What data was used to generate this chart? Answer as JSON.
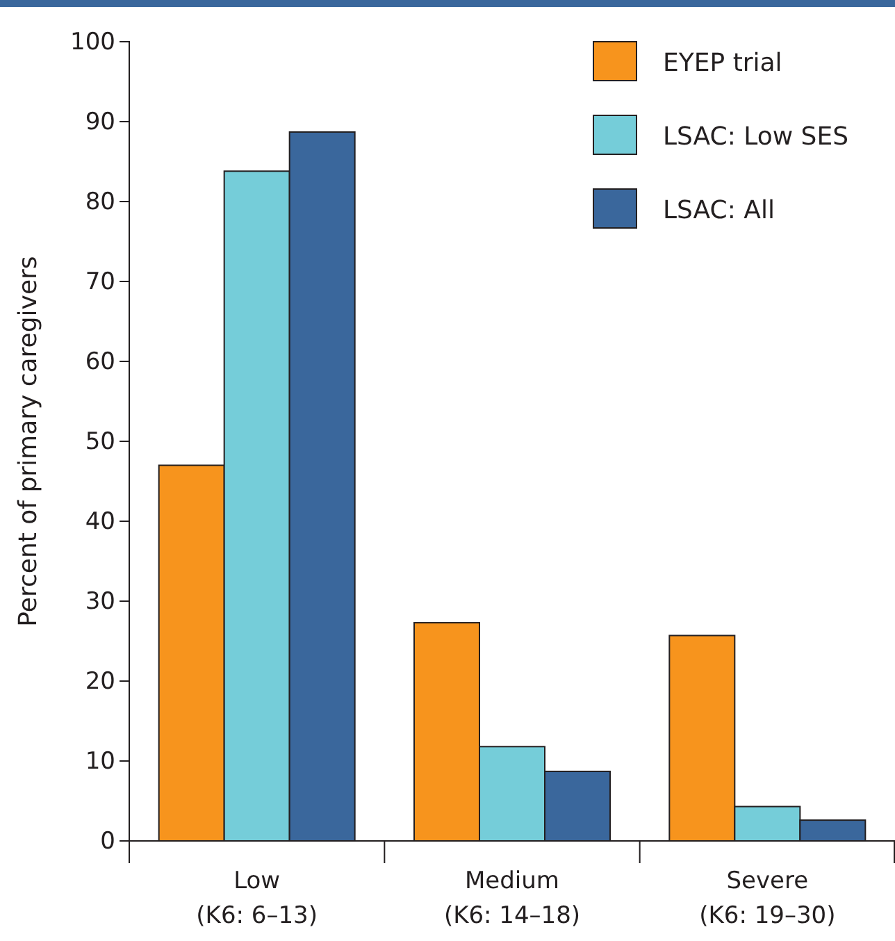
{
  "chart_data": {
    "type": "bar",
    "ylabel": "Percent of primary caregivers",
    "categories": [
      "Low\n(K6: 6–13)",
      "Medium\n(K6: 14–18)",
      "Severe\n(K6: 19–30)"
    ],
    "series": [
      {
        "name": "EYEP trial",
        "color": "#f7941d",
        "values": [
          47,
          27.3,
          25.7
        ]
      },
      {
        "name": "LSAC: Low SES",
        "color": "#75cdd9",
        "values": [
          83.8,
          11.8,
          4.3
        ]
      },
      {
        "name": "LSAC: All",
        "color": "#3a679c",
        "values": [
          88.7,
          8.7,
          2.6
        ]
      }
    ],
    "ylim": [
      0,
      100
    ],
    "yticks": [
      0,
      10,
      20,
      30,
      40,
      50,
      60,
      70,
      80,
      90,
      100
    ],
    "grid": false,
    "legend": "top right"
  }
}
